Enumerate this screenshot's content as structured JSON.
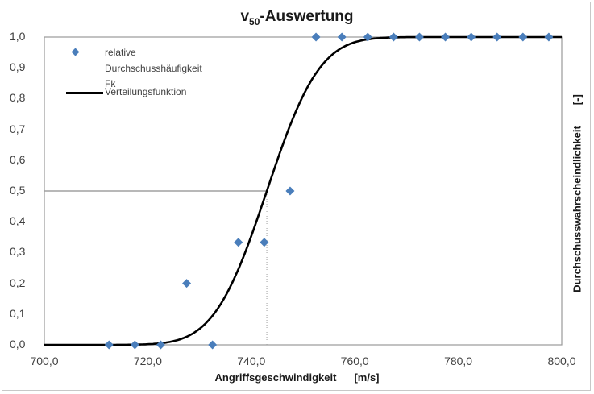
{
  "chart_data": {
    "type": "scatter",
    "title": "v50-Auswertung",
    "title_main": "v",
    "title_sub": "50",
    "title_rest": "-Auswertung",
    "xlabel": "Angriffsgeschwindigkeit",
    "xlabel_unit": "[m/s]",
    "ylabel": "Durchschusswahrscheindlichkeit",
    "ylabel_unit": "[-]",
    "xlim": [
      700,
      800
    ],
    "ylim": [
      0,
      1
    ],
    "x_ticks": [
      "700,0",
      "720,0",
      "740,0",
      "760,0",
      "780,0",
      "800,0"
    ],
    "y_ticks": [
      "0,0",
      "0,1",
      "0,2",
      "0,3",
      "0,4",
      "0,5",
      "0,6",
      "0,7",
      "0,8",
      "0,9",
      "1,0"
    ],
    "grid": false,
    "legend_position": "upper left",
    "series": [
      {
        "name": "relative Durchschusshäufigkeit Fk",
        "type": "scatter",
        "marker": "diamond",
        "color": "#4a7ebb",
        "x": [
          712.5,
          717.5,
          722.5,
          727.5,
          732.5,
          737.5,
          742.5,
          747.5,
          752.5,
          757.5,
          762.5,
          767.5,
          772.5,
          777.5,
          782.5,
          787.5,
          792.5,
          797.5
        ],
        "y": [
          0.0,
          0.0,
          0.0,
          0.2,
          0.0,
          0.333,
          0.333,
          0.5,
          1.0,
          1.0,
          1.0,
          1.0,
          1.0,
          1.0,
          1.0,
          1.0,
          1.0,
          1.0
        ]
      },
      {
        "name": "Verteilungsfunktion",
        "type": "line",
        "color": "#000000",
        "distribution": "normal_cdf",
        "mean": 743.0,
        "sigma": 8.0
      }
    ],
    "annotations": [
      {
        "type": "hline",
        "y": 0.5,
        "x_from": 700,
        "x_to": 743.0,
        "style": "solid",
        "color": "#a0a0a0"
      },
      {
        "type": "vline",
        "x": 743.0,
        "y_from": 0,
        "y_to": 0.5,
        "style": "dotted",
        "color": "#a0a0a0"
      }
    ]
  },
  "legend": {
    "scatter_label_lines": [
      "relative",
      "Durchschusshäufigkeit",
      "Fk"
    ],
    "line_label": "Verteilungsfunktion"
  }
}
